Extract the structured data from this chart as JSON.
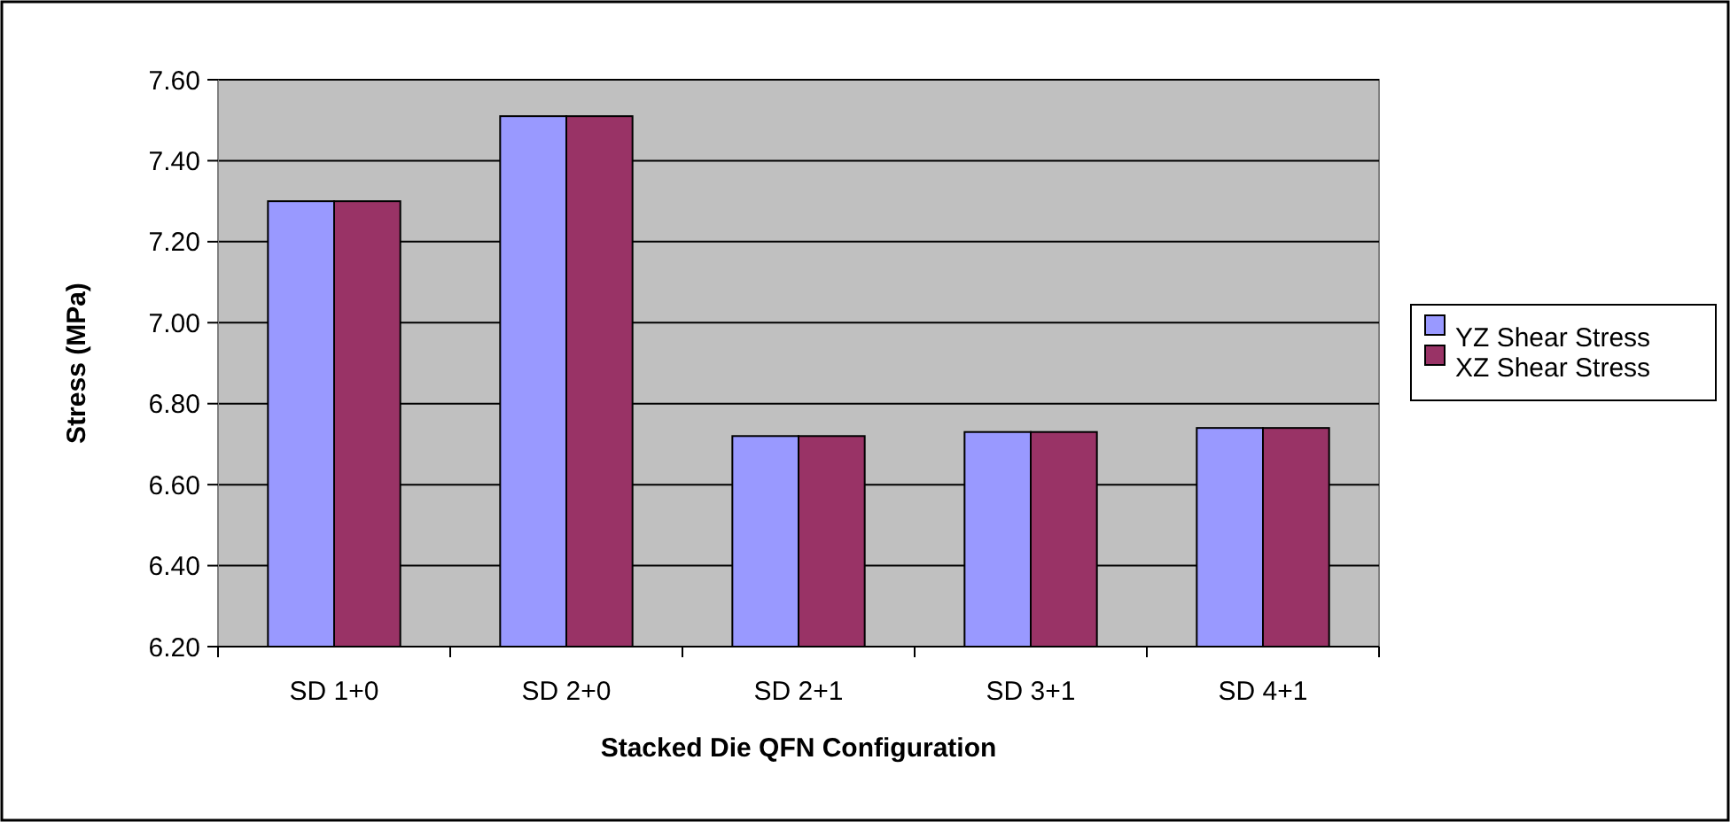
{
  "chart_data": {
    "type": "bar",
    "xlabel": "Stacked Die QFN Configuration",
    "ylabel": "Stress (MPa)",
    "categories": [
      "SD 1+0",
      "SD 2+0",
      "SD 2+1",
      "SD 3+1",
      "SD 4+1"
    ],
    "series": [
      {
        "name": "YZ Shear Stress",
        "color": "#9999ff",
        "values": [
          7.3,
          7.51,
          6.72,
          6.73,
          6.74
        ]
      },
      {
        "name": "XZ Shear Stress",
        "color": "#993366",
        "values": [
          7.3,
          7.51,
          6.72,
          6.73,
          6.74
        ]
      }
    ],
    "ylim": [
      6.2,
      7.6
    ],
    "yticks": [
      {
        "value": 6.2,
        "label": "6.20"
      },
      {
        "value": 6.4,
        "label": "6.40"
      },
      {
        "value": 6.6,
        "label": "6.60"
      },
      {
        "value": 6.8,
        "label": "6.80"
      },
      {
        "value": 7.0,
        "label": "7.00"
      },
      {
        "value": 7.2,
        "label": "7.20"
      },
      {
        "value": 7.4,
        "label": "7.40"
      },
      {
        "value": 7.6,
        "label": "7.60"
      }
    ],
    "grid": "y",
    "legend": "right"
  }
}
